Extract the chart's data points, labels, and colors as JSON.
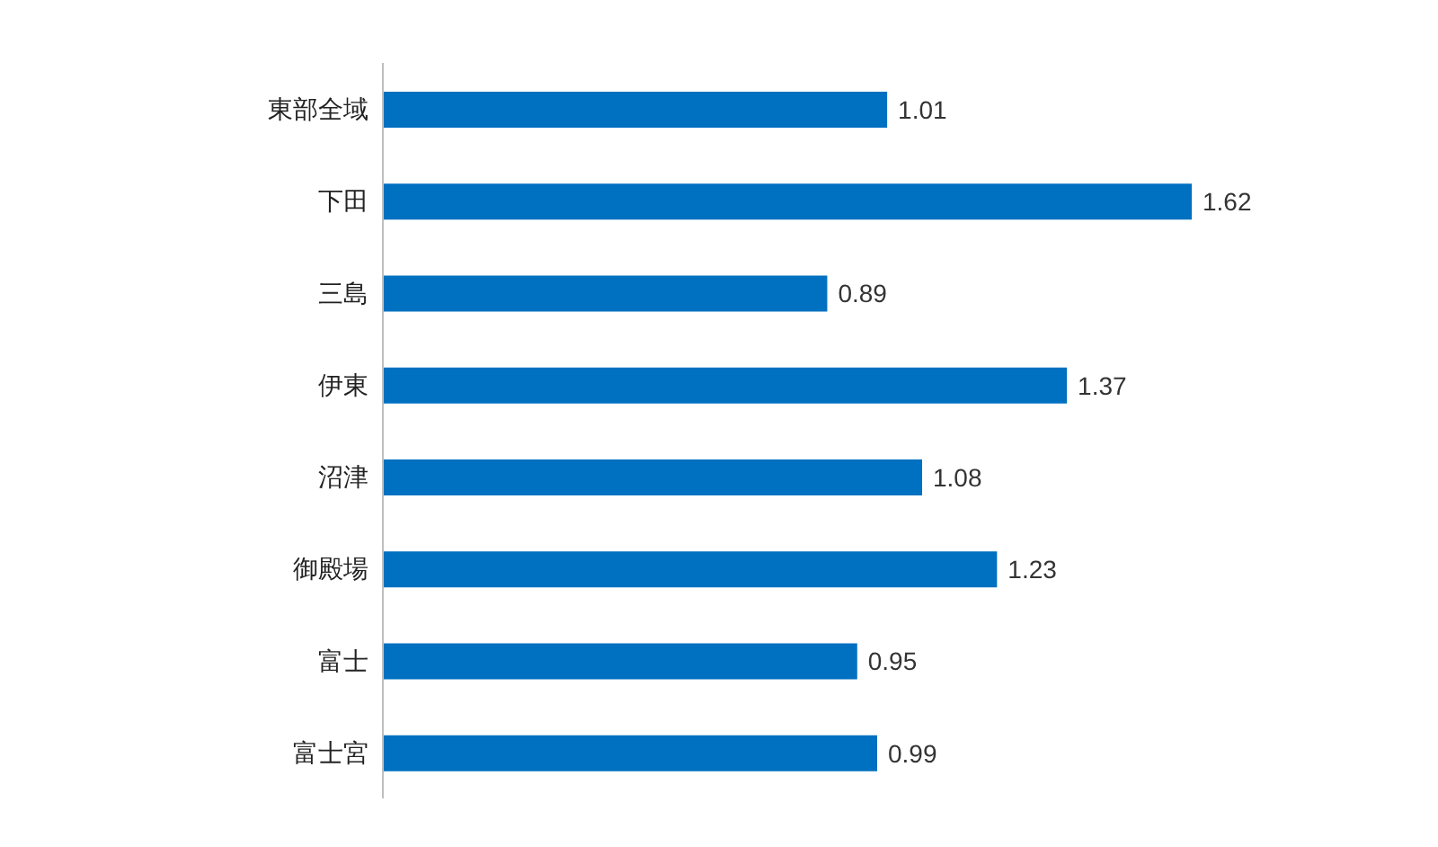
{
  "chart_data": {
    "type": "bar",
    "orientation": "horizontal",
    "categories": [
      "東部全域",
      "下田",
      "三島",
      "伊東",
      "沼津",
      "御殿場",
      "富士",
      "富士宮"
    ],
    "values": [
      1.01,
      1.62,
      0.89,
      1.37,
      1.08,
      1.23,
      0.95,
      0.99
    ],
    "color": "#0070c0",
    "data_labels": true
  }
}
